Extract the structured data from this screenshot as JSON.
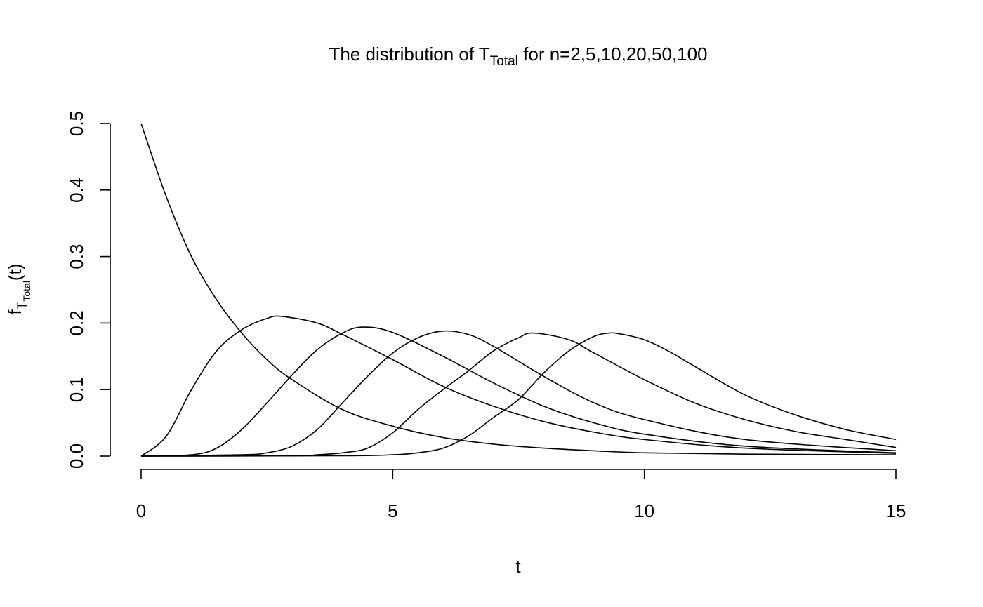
{
  "chart_data": {
    "type": "line",
    "title": {
      "prefix": "The distribution of T",
      "subscript": "Total",
      "suffix": " for n=2,5,10,20,50,100"
    },
    "xlabel": "t",
    "ylabel": {
      "base": "f",
      "sub_base": "T",
      "sub_sub": "Total",
      "suffix": "(t)"
    },
    "xlim": [
      0,
      15
    ],
    "ylim": [
      0,
      0.5
    ],
    "x_ticks": [
      0,
      5,
      10,
      15
    ],
    "x_tick_labels": [
      "0",
      "5",
      "10",
      "15"
    ],
    "y_ticks": [
      0,
      0.1,
      0.2,
      0.3,
      0.4,
      0.5
    ],
    "y_tick_labels": [
      "0.0",
      "0.1",
      "0.2",
      "0.3",
      "0.4",
      "0.5"
    ],
    "grid": false,
    "line_color": "#000000",
    "series": [
      {
        "x": [
          0,
          0.5,
          1,
          1.5,
          2,
          2.5,
          3,
          4,
          5,
          6,
          7,
          8,
          9,
          10,
          12,
          15
        ],
        "values": [
          0.5,
          0.39,
          0.3,
          0.235,
          0.185,
          0.145,
          0.115,
          0.07,
          0.045,
          0.028,
          0.018,
          0.012,
          0.008,
          0.005,
          0.003,
          0.002
        ]
      },
      {
        "x": [
          0,
          0.5,
          1,
          1.5,
          2,
          2.5,
          2.8,
          3.5,
          4,
          5,
          6,
          7,
          8,
          9,
          10,
          12,
          15
        ],
        "values": [
          0,
          0.03,
          0.1,
          0.158,
          0.19,
          0.207,
          0.21,
          0.2,
          0.183,
          0.145,
          0.105,
          0.075,
          0.052,
          0.036,
          0.025,
          0.012,
          0.004
        ]
      },
      {
        "x": [
          0,
          1,
          1.5,
          2,
          2.5,
          3,
          3.5,
          4,
          4.4,
          5,
          6,
          7,
          8,
          9,
          10,
          12,
          15
        ],
        "values": [
          0,
          0.002,
          0.012,
          0.04,
          0.08,
          0.122,
          0.16,
          0.185,
          0.194,
          0.186,
          0.15,
          0.11,
          0.075,
          0.05,
          0.033,
          0.015,
          0.005
        ]
      },
      {
        "x": [
          0,
          2,
          2.5,
          3,
          3.5,
          4,
          4.5,
          5,
          5.5,
          6,
          6.5,
          7,
          8,
          9,
          10,
          12,
          15
        ],
        "values": [
          0,
          0.002,
          0.005,
          0.015,
          0.04,
          0.08,
          0.12,
          0.155,
          0.178,
          0.188,
          0.183,
          0.165,
          0.12,
          0.08,
          0.055,
          0.025,
          0.008
        ]
      },
      {
        "x": [
          0,
          3,
          3.5,
          4,
          4.5,
          5,
          5.5,
          6,
          6.5,
          7,
          7.5,
          7.8,
          8.5,
          9,
          10,
          11,
          12,
          13,
          14,
          15
        ],
        "values": [
          0,
          0.0005,
          0.002,
          0.005,
          0.012,
          0.035,
          0.07,
          0.1,
          0.128,
          0.158,
          0.178,
          0.185,
          0.175,
          0.155,
          0.115,
          0.08,
          0.055,
          0.037,
          0.025,
          0.013
        ]
      },
      {
        "x": [
          0,
          4,
          5,
          5.5,
          6,
          6.5,
          7,
          7.5,
          8,
          8.5,
          9,
          9.3,
          9.5,
          10,
          10.5,
          11,
          12,
          13,
          14,
          15
        ],
        "values": [
          0,
          0.0005,
          0.002,
          0.005,
          0.012,
          0.03,
          0.058,
          0.085,
          0.125,
          0.158,
          0.18,
          0.185,
          0.184,
          0.175,
          0.157,
          0.135,
          0.092,
          0.062,
          0.04,
          0.025
        ]
      }
    ]
  }
}
